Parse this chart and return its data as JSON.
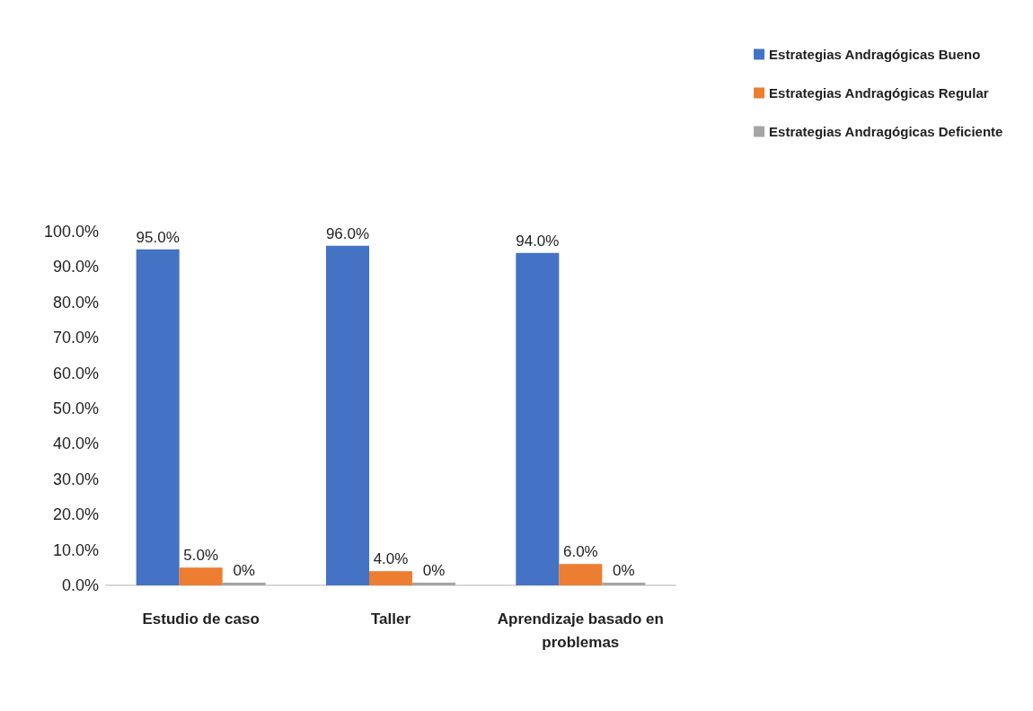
{
  "chart_data": {
    "type": "bar",
    "categories": [
      "Estudio de caso",
      "Taller",
      "Aprendizaje basado en\nproblemas"
    ],
    "series": [
      {
        "name": "Estrategias Andragógicas Bueno",
        "color": "#4472c4",
        "values": [
          95,
          96,
          94
        ],
        "value_labels": [
          "95.0%",
          "96.0%",
          "94.0%"
        ]
      },
      {
        "name": "Estrategias Andragógicas Regular",
        "color": "#ed7d31",
        "values": [
          5,
          4,
          6
        ],
        "value_labels": [
          "5.0%",
          "4.0%",
          "6.0%"
        ]
      },
      {
        "name": "Estrategias Andragógicas Deficiente",
        "color": "#a5a5a5",
        "values": [
          0,
          0,
          0
        ],
        "value_labels": [
          "0%",
          "0%",
          "0%"
        ]
      }
    ],
    "ylim": [
      0,
      100
    ],
    "yticks": [
      {
        "value": 0,
        "label": "0.0%"
      },
      {
        "value": 10,
        "label": "10.0%"
      },
      {
        "value": 20,
        "label": "20.0%"
      },
      {
        "value": 30,
        "label": "30.0%"
      },
      {
        "value": 40,
        "label": "40.0%"
      },
      {
        "value": 50,
        "label": "50.0%"
      },
      {
        "value": 60,
        "label": "60.0%"
      },
      {
        "value": 70,
        "label": "70.0%"
      },
      {
        "value": 80,
        "label": "80.0%"
      },
      {
        "value": 90,
        "label": "90.0%"
      },
      {
        "value": 100,
        "label": "100.0%"
      }
    ],
    "grid": false,
    "legend": "top right"
  }
}
